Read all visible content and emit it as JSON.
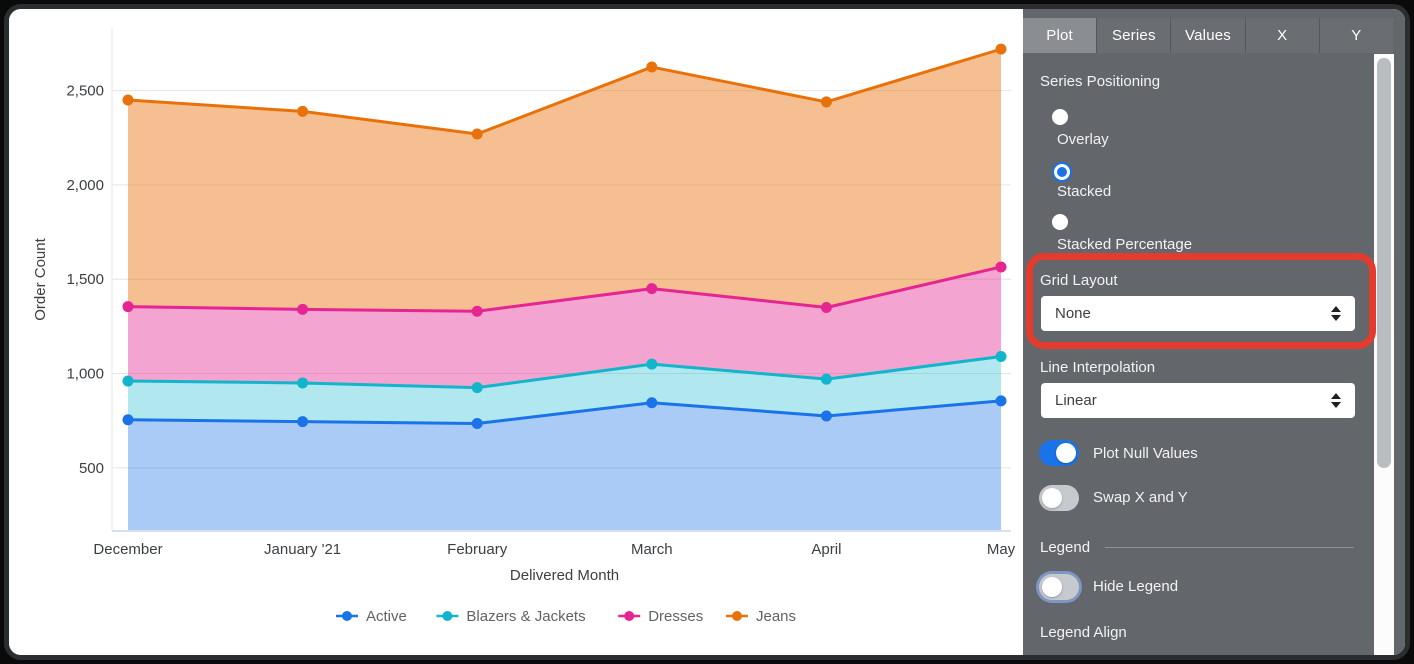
{
  "chart_data": {
    "type": "area",
    "series_positioning": "stacked",
    "title": "",
    "xlabel": "Delivered Month",
    "ylabel": "Order Count",
    "x": [
      "December",
      "January '21",
      "February",
      "March",
      "April",
      "May"
    ],
    "series": [
      {
        "name": "Active",
        "color": "#1A73E8",
        "fill_opacity": 0.37,
        "stacked_top_values": [
          755,
          745,
          735,
          845,
          775,
          855
        ]
      },
      {
        "name": "Blazers & Jackets",
        "color": "#12B5CB",
        "fill_opacity": 0.33,
        "stacked_top_values": [
          960,
          950,
          925,
          1050,
          970,
          1090
        ]
      },
      {
        "name": "Dresses",
        "color": "#E52592",
        "fill_opacity": 0.42,
        "stacked_top_values": [
          1355,
          1340,
          1330,
          1450,
          1350,
          1565
        ]
      },
      {
        "name": "Jeans",
        "color": "#E8710A",
        "fill_opacity": 0.45,
        "stacked_top_values": [
          2450,
          2390,
          2270,
          2625,
          2440,
          2720
        ]
      }
    ],
    "y_ticks": [
      500,
      1000,
      1500,
      2000,
      2500
    ],
    "ylim": [
      165,
      2832
    ],
    "grid": "horizontal",
    "legend_position": "bottom",
    "legend_entries": [
      "Active",
      "Blazers & Jackets",
      "Dresses",
      "Jeans"
    ]
  },
  "panel": {
    "tabs": [
      {
        "label": "Plot"
      },
      {
        "label": "Series"
      },
      {
        "label": "Values"
      },
      {
        "label": "X"
      },
      {
        "label": "Y"
      }
    ],
    "series_positioning": {
      "label": "Series Positioning",
      "options": [
        {
          "label": "Overlay",
          "selected": false
        },
        {
          "label": "Stacked",
          "selected": true
        },
        {
          "label": "Stacked Percentage",
          "selected": false
        }
      ]
    },
    "grid_layout": {
      "label": "Grid Layout",
      "value": "None"
    },
    "line_interpolation": {
      "label": "Line Interpolation",
      "value": "Linear"
    },
    "plot_null_values": {
      "label": "Plot Null Values",
      "on": true
    },
    "swap_x_y": {
      "label": "Swap X and Y",
      "on": false
    },
    "legend_section": {
      "header": "Legend",
      "hide_legend": {
        "label": "Hide Legend",
        "on": false
      },
      "legend_align_label": "Legend Align"
    }
  },
  "annotation": {
    "highlight_color": "#e33b2e",
    "highlighted_control": "Grid Layout"
  },
  "colors": {
    "panel_bg": "#63666b",
    "accent_blue": "#1a73e8",
    "tick_text": "#3c4043",
    "legend_text": "#5f6368"
  }
}
